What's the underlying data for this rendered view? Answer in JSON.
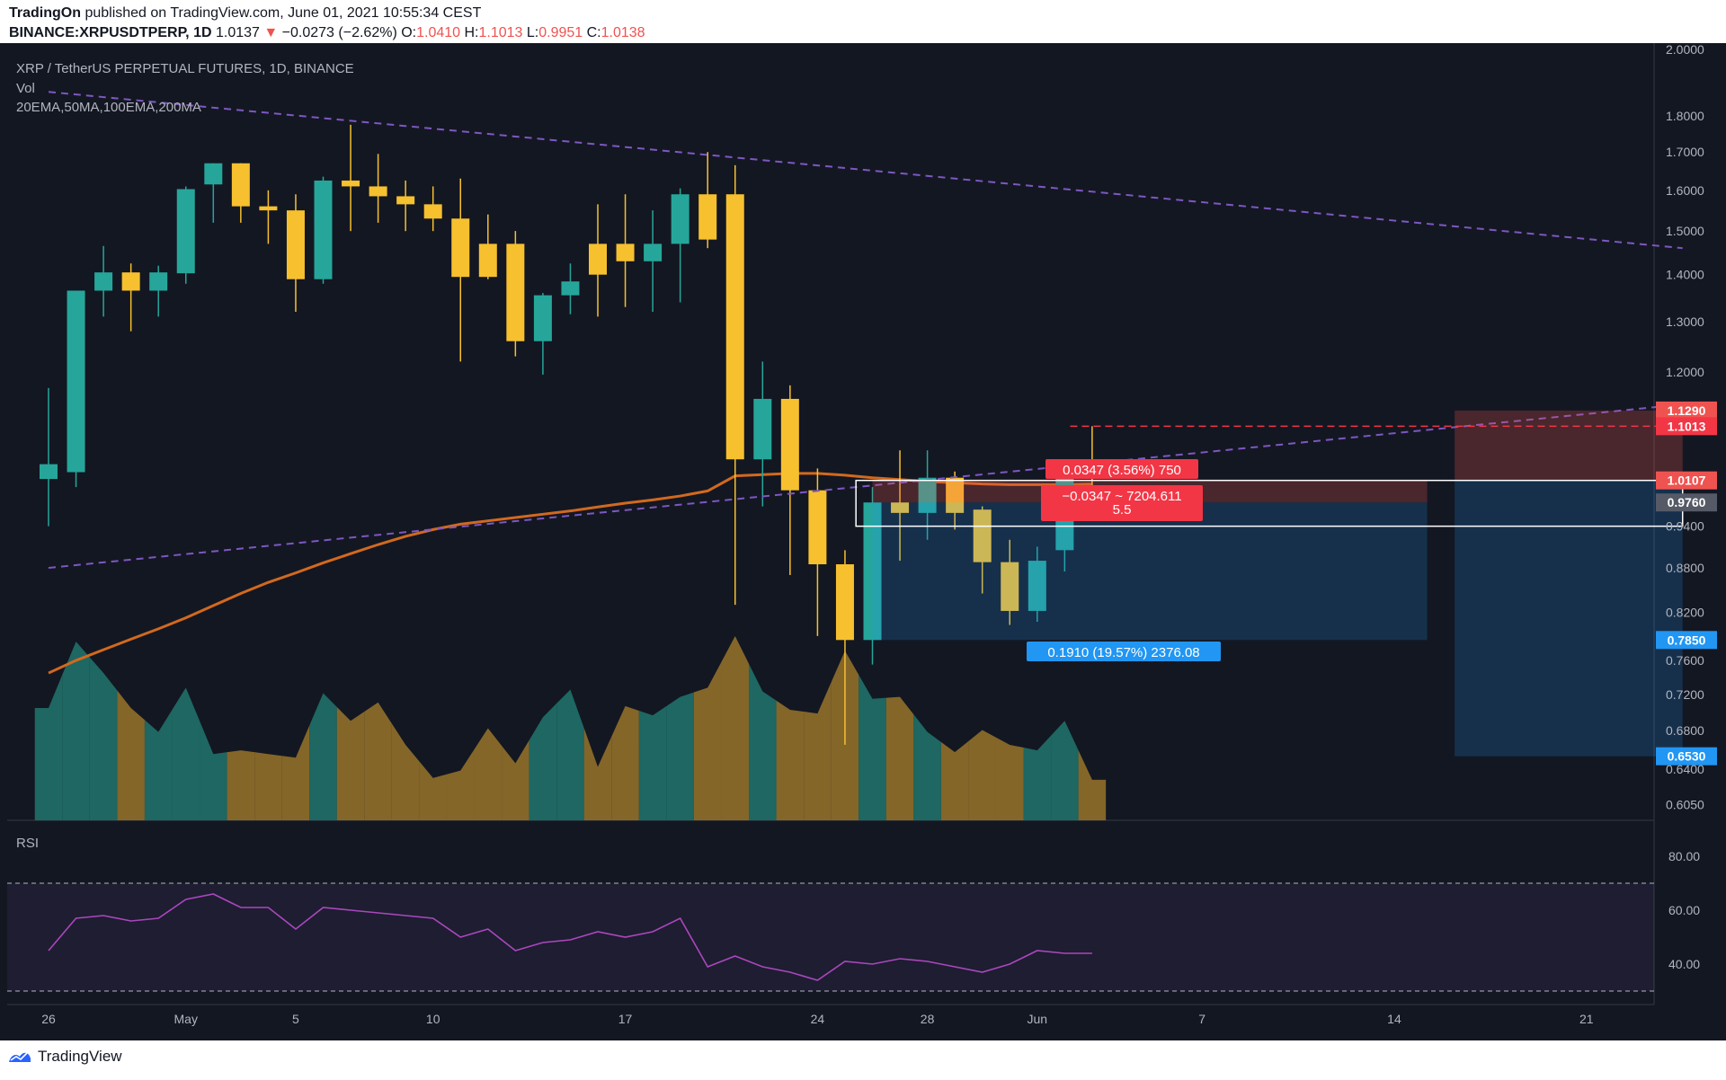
{
  "header": {
    "publisher": "TradingOn",
    "published_text": "published on TradingView.com, June 01, 2021 10:55:34 CEST",
    "symbol": "BINANCE:XRPUSDTPERP, 1D",
    "price": "1.0137",
    "arrow": "▼",
    "change": "−0.0273 (−2.62%)",
    "o_label": "O:",
    "o_value": "1.0410",
    "h_label": "H:",
    "h_value": "1.1013",
    "l_label": "L:",
    "l_value": "0.9951",
    "c_label": "C:",
    "c_value": "1.0138"
  },
  "legend": {
    "title": "XRP / TetherUS PERPETUAL FUTURES, 1D, BINANCE",
    "vol": "Vol",
    "ma": "20EMA,50MA,100EMA,200MA",
    "rsi": "RSI"
  },
  "footer": {
    "brand": "TradingView"
  },
  "colors": {
    "bg": "#131722",
    "up": "#26a69a",
    "down": "#f7c02f",
    "ma": "#d2691e",
    "trend": "#7e57c2",
    "rsi": "#ab47bc",
    "stop": "#ef5350",
    "target": "#2196f3"
  },
  "price_scale": {
    "ticks": [
      "2.0000",
      "1.8000",
      "1.7000",
      "1.6000",
      "1.5000",
      "1.4000",
      "1.3000",
      "1.2000",
      "0.9400",
      "0.8800",
      "0.8200",
      "0.7600",
      "0.7200",
      "0.6800",
      "0.6400",
      "0.6050"
    ],
    "tick_values": [
      2.0,
      1.8,
      1.7,
      1.6,
      1.5,
      1.4,
      1.3,
      1.2,
      0.94,
      0.88,
      0.82,
      0.76,
      0.72,
      0.68,
      0.64,
      0.605
    ],
    "labels": [
      {
        "text": "1.1290",
        "value": 1.129,
        "color": "#ef5350"
      },
      {
        "text": "1.1013",
        "value": 1.1013,
        "color": "#f23645"
      },
      {
        "text": "1.0107",
        "value": 1.0107,
        "color": "#ef5350"
      },
      {
        "text": "0.9760",
        "value": 0.976,
        "color": "#555a66"
      },
      {
        "text": "0.7850",
        "value": 0.785,
        "color": "#2196f3"
      },
      {
        "text": "0.6530",
        "value": 0.653,
        "color": "#2196f3"
      }
    ]
  },
  "rsi_scale": {
    "ticks": [
      "80.00",
      "60.00",
      "40.00"
    ],
    "tick_values": [
      80,
      60,
      40
    ],
    "upper": 70,
    "lower": 30
  },
  "time_axis": {
    "labels": [
      {
        "text": "26",
        "day": 0
      },
      {
        "text": "May",
        "day": 5
      },
      {
        "text": "5",
        "day": 9
      },
      {
        "text": "10",
        "day": 14
      },
      {
        "text": "17",
        "day": 21
      },
      {
        "text": "24",
        "day": 28
      },
      {
        "text": "28",
        "day": 32
      },
      {
        "text": "Jun",
        "day": 36
      },
      {
        "text": "7",
        "day": 42
      },
      {
        "text": "14",
        "day": 49
      },
      {
        "text": "21",
        "day": 56
      }
    ]
  },
  "chart_data": {
    "type": "candlestick",
    "title": "XRP / TetherUS PERPETUAL FUTURES, 1D, BINANCE",
    "scale": "log",
    "ylim": [
      0.59,
      2.02
    ],
    "candles": [
      {
        "o": 1.013,
        "h": 1.17,
        "l": 0.94,
        "c": 1.037
      },
      {
        "o": 1.024,
        "h": 1.365,
        "l": 1.0,
        "c": 1.365
      },
      {
        "o": 1.365,
        "h": 1.465,
        "l": 1.31,
        "c": 1.405
      },
      {
        "o": 1.405,
        "h": 1.425,
        "l": 1.28,
        "c": 1.365
      },
      {
        "o": 1.365,
        "h": 1.42,
        "l": 1.31,
        "c": 1.405
      },
      {
        "o": 1.403,
        "h": 1.61,
        "l": 1.38,
        "c": 1.603
      },
      {
        "o": 1.615,
        "h": 1.67,
        "l": 1.52,
        "c": 1.67
      },
      {
        "o": 1.67,
        "h": 1.67,
        "l": 1.52,
        "c": 1.56
      },
      {
        "o": 1.56,
        "h": 1.6,
        "l": 1.47,
        "c": 1.55
      },
      {
        "o": 1.55,
        "h": 1.59,
        "l": 1.32,
        "c": 1.39
      },
      {
        "o": 1.39,
        "h": 1.635,
        "l": 1.38,
        "c": 1.625
      },
      {
        "o": 1.625,
        "h": 1.775,
        "l": 1.5,
        "c": 1.61
      },
      {
        "o": 1.61,
        "h": 1.695,
        "l": 1.52,
        "c": 1.585
      },
      {
        "o": 1.585,
        "h": 1.625,
        "l": 1.5,
        "c": 1.565
      },
      {
        "o": 1.565,
        "h": 1.61,
        "l": 1.5,
        "c": 1.53
      },
      {
        "o": 1.53,
        "h": 1.63,
        "l": 1.22,
        "c": 1.395
      },
      {
        "o": 1.47,
        "h": 1.54,
        "l": 1.39,
        "c": 1.395
      },
      {
        "o": 1.47,
        "h": 1.5,
        "l": 1.23,
        "c": 1.26
      },
      {
        "o": 1.26,
        "h": 1.36,
        "l": 1.195,
        "c": 1.355
      },
      {
        "o": 1.355,
        "h": 1.425,
        "l": 1.315,
        "c": 1.385
      },
      {
        "o": 1.47,
        "h": 1.565,
        "l": 1.31,
        "c": 1.4
      },
      {
        "o": 1.47,
        "h": 1.59,
        "l": 1.33,
        "c": 1.43
      },
      {
        "o": 1.43,
        "h": 1.55,
        "l": 1.32,
        "c": 1.47
      },
      {
        "o": 1.47,
        "h": 1.605,
        "l": 1.34,
        "c": 1.59
      },
      {
        "o": 1.59,
        "h": 1.7,
        "l": 1.46,
        "c": 1.48
      },
      {
        "o": 1.59,
        "h": 1.665,
        "l": 0.83,
        "c": 1.045
      },
      {
        "o": 1.045,
        "h": 1.22,
        "l": 0.97,
        "c": 1.15
      },
      {
        "o": 1.15,
        "h": 1.175,
        "l": 0.87,
        "c": 0.995
      },
      {
        "o": 0.995,
        "h": 1.03,
        "l": 0.79,
        "c": 0.885
      },
      {
        "o": 0.885,
        "h": 0.905,
        "l": 0.665,
        "c": 0.785
      },
      {
        "o": 0.785,
        "h": 1.0,
        "l": 0.755,
        "c": 0.976
      },
      {
        "o": 0.976,
        "h": 1.06,
        "l": 0.89,
        "c": 0.96
      },
      {
        "o": 0.96,
        "h": 1.06,
        "l": 0.92,
        "c": 1.015
      },
      {
        "o": 1.015,
        "h": 1.025,
        "l": 0.935,
        "c": 0.96
      },
      {
        "o": 0.965,
        "h": 0.97,
        "l": 0.845,
        "c": 0.888
      },
      {
        "o": 0.888,
        "h": 0.92,
        "l": 0.804,
        "c": 0.822
      },
      {
        "o": 0.822,
        "h": 0.91,
        "l": 0.808,
        "c": 0.89
      },
      {
        "o": 0.905,
        "h": 1.03,
        "l": 0.875,
        "c": 1.025
      },
      {
        "o": 1.041,
        "h": 1.1013,
        "l": 0.9951,
        "c": 1.0138
      }
    ],
    "volume_relative": [
      0.61,
      0.97,
      0.8,
      0.61,
      0.48,
      0.72,
      0.36,
      0.38,
      0.36,
      0.34,
      0.69,
      0.54,
      0.64,
      0.41,
      0.23,
      0.27,
      0.5,
      0.31,
      0.56,
      0.71,
      0.29,
      0.62,
      0.57,
      0.67,
      0.72,
      1.0,
      0.7,
      0.6,
      0.58,
      0.92,
      0.66,
      0.67,
      0.48,
      0.37,
      0.49,
      0.41,
      0.38,
      0.54,
      0.22
    ],
    "ma_100ema": [
      0.745,
      0.76,
      0.773,
      0.786,
      0.799,
      0.813,
      0.829,
      0.845,
      0.86,
      0.873,
      0.887,
      0.9,
      0.913,
      0.925,
      0.935,
      0.943,
      0.948,
      0.953,
      0.958,
      0.963,
      0.969,
      0.975,
      0.98,
      0.986,
      0.994,
      1.018,
      1.02,
      1.022,
      1.022,
      1.019,
      1.015,
      1.012,
      1.009,
      1.007,
      1.005,
      1.004,
      1.004,
      1.004,
      1.005
    ],
    "trendlines": [
      {
        "from": {
          "day": 0,
          "price": 1.87
        },
        "to": {
          "day": 59.5,
          "price": 1.46
        }
      },
      {
        "from": {
          "day": 0,
          "price": 0.88
        },
        "to": {
          "day": 59.5,
          "price": 1.14
        }
      }
    ],
    "positions": [
      {
        "type": "short",
        "entry": 1.0107,
        "stop": 1.129,
        "target": 0.653,
        "day_from": 51.2,
        "day_to": 59.5
      },
      {
        "type": "short",
        "entry": 0.976,
        "stop": 1.0107,
        "target": 0.785,
        "day_from": 30,
        "day_to": 50.2
      }
    ],
    "boxes": [
      {
        "day_from": 29.4,
        "day_to": 59.5,
        "top": 1.0107,
        "bottom": 0.94
      }
    ],
    "hlines": [
      {
        "price": 1.1013,
        "from_day": 37.2,
        "to_day": 59.5,
        "style": "dashed"
      }
    ],
    "labels": {
      "stop_label": "0.0347 (3.56%) 750",
      "pnl_label1": "−0.0347 ~ 7204.611",
      "pnl_label2": "5.5",
      "target_label": "0.1910 (19.57%) 2376.08"
    },
    "rsi": [
      45,
      57,
      58,
      56,
      57,
      64,
      66,
      61,
      61,
      53,
      61,
      60,
      59,
      58,
      57,
      50,
      53,
      45,
      48,
      49,
      52,
      50,
      52,
      57,
      39,
      43,
      39,
      37,
      34,
      41,
      40,
      42,
      41,
      39,
      37,
      40,
      45,
      44,
      44
    ]
  }
}
